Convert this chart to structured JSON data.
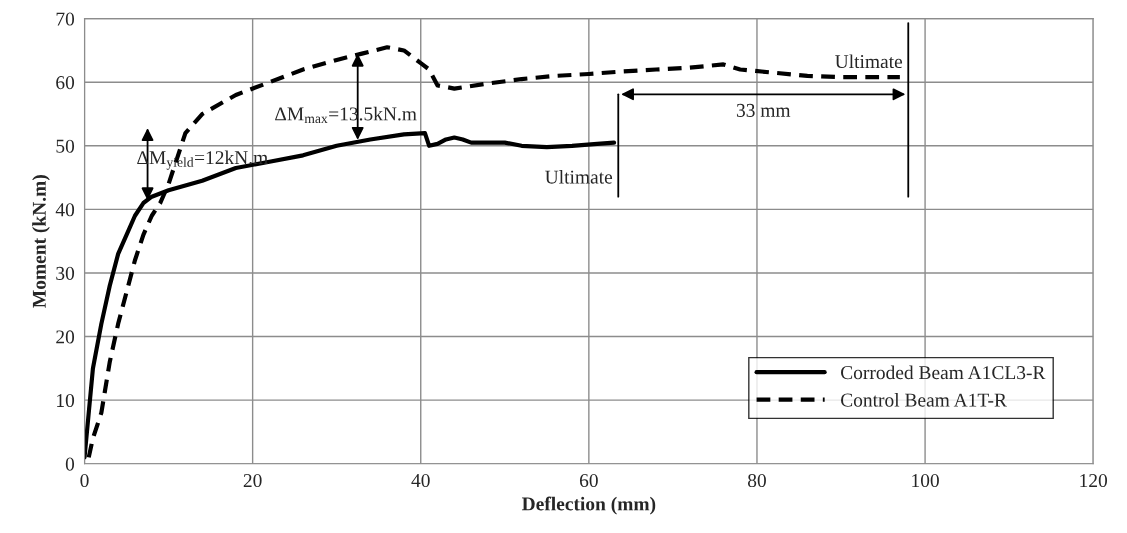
{
  "chart_data": {
    "type": "line",
    "xlabel": "Deflection (mm)",
    "ylabel": "Moment (kN.m)",
    "xlim": [
      0,
      120
    ],
    "ylim": [
      0,
      70
    ],
    "xticks": [
      0,
      20,
      40,
      60,
      80,
      100,
      120
    ],
    "yticks": [
      0,
      10,
      20,
      30,
      40,
      50,
      60,
      70
    ],
    "grid": true,
    "legend": "bottom right",
    "marker": "none",
    "series": [
      {
        "name": "Corroded Beam A1CL3-R",
        "color": "#000000",
        "line_style": "solid",
        "x": [
          0,
          0.5,
          1,
          2,
          3,
          4,
          5,
          6,
          7,
          8,
          10,
          14,
          18,
          22,
          26,
          30,
          34,
          38,
          40.5,
          41,
          42,
          43,
          44,
          45,
          46,
          48,
          50,
          52,
          55,
          58,
          61,
          63
        ],
        "values": [
          1,
          8,
          15,
          22,
          28,
          33,
          36,
          39,
          41,
          42,
          43,
          44.5,
          46.5,
          47.5,
          48.5,
          50,
          51,
          51.8,
          52,
          50,
          50.3,
          51,
          51.3,
          51,
          50.5,
          50.5,
          50.5,
          50,
          49.8,
          50,
          50.3,
          50.5
        ]
      },
      {
        "name": "Control Beam A1T-R",
        "color": "#000000",
        "line_style": "dashed",
        "x": [
          0.5,
          1,
          2,
          3,
          4,
          5,
          6,
          7,
          8,
          9,
          10,
          11,
          12,
          14,
          18,
          22,
          26,
          30,
          33,
          36,
          38,
          40,
          41,
          42,
          44,
          48,
          52,
          56,
          60,
          64,
          68,
          72,
          76,
          78,
          82,
          86,
          90,
          94,
          97
        ],
        "values": [
          1,
          4,
          8,
          16,
          22,
          27,
          32,
          36,
          39,
          41,
          44,
          48,
          52,
          55,
          58,
          60,
          62,
          63.5,
          64.5,
          65.5,
          65,
          63,
          62,
          59.5,
          59,
          59.8,
          60.5,
          61,
          61.3,
          61.7,
          62,
          62.3,
          62.8,
          62,
          61.5,
          61,
          60.8,
          60.8,
          60.8
        ]
      }
    ],
    "ref_lines": [
      {
        "axis": "x",
        "value": 63.5,
        "color": "#000000",
        "label": "Ultimate"
      },
      {
        "axis": "x",
        "value": 98,
        "color": "#000000",
        "label": "Ultimate"
      }
    ],
    "annotations": [
      {
        "text": "ΔM$_{yield}$=12kN.m",
        "x": 7.5,
        "y": 41
      },
      {
        "text": "ΔM$_{max}$=13.5kN.m",
        "x": 32.5,
        "y": 50.5
      },
      "33 mm"
    ]
  }
}
